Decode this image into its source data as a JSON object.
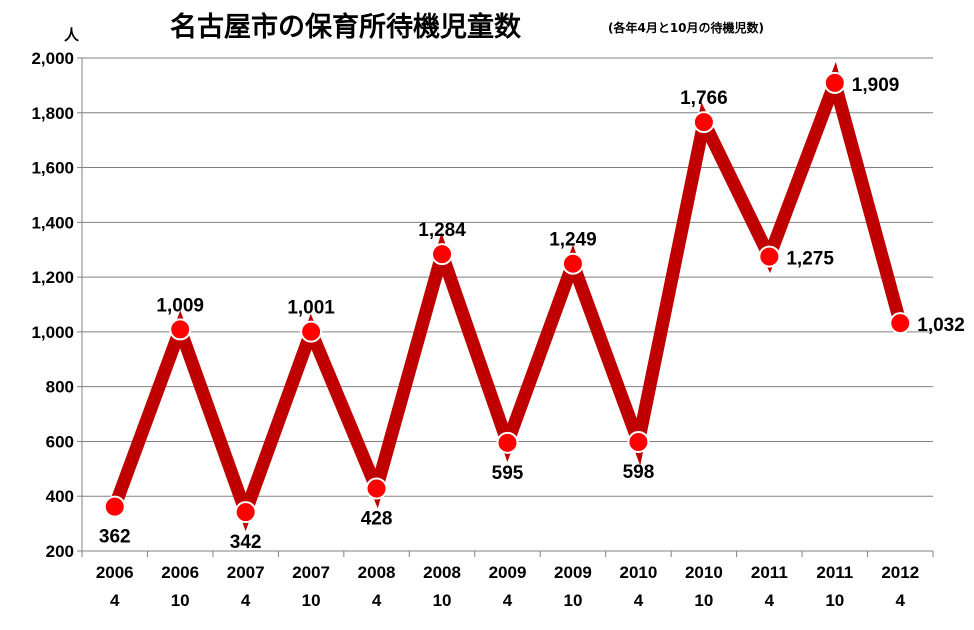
{
  "title": "名古屋市の保育所待機児童数",
  "subtitle": "(各年4月と10月の待機児数)",
  "chart_data": {
    "type": "line",
    "title": "名古屋市の保育所待機児童数",
    "subtitle": "(各年4月と10月の待機児数)",
    "ylabel": "人",
    "xlabel": "",
    "ylim": [
      200,
      2000
    ],
    "yticks": [
      "200",
      "400",
      "600",
      "800",
      "1,000",
      "1,200",
      "1,400",
      "1,600",
      "1,800",
      "2,000"
    ],
    "ytick_values": [
      200,
      400,
      600,
      800,
      1000,
      1200,
      1400,
      1600,
      1800,
      2000
    ],
    "categories": [
      {
        "year": "2006",
        "month": "4"
      },
      {
        "year": "2006",
        "month": "10"
      },
      {
        "year": "2007",
        "month": "4"
      },
      {
        "year": "2007",
        "month": "10"
      },
      {
        "year": "2008",
        "month": "4"
      },
      {
        "year": "2008",
        "month": "10"
      },
      {
        "year": "2009",
        "month": "4"
      },
      {
        "year": "2009",
        "month": "10"
      },
      {
        "year": "2010",
        "month": "4"
      },
      {
        "year": "2010",
        "month": "10"
      },
      {
        "year": "2011",
        "month": "4"
      },
      {
        "year": "2011",
        "month": "10"
      },
      {
        "year": "2012",
        "month": "4"
      }
    ],
    "values": [
      362,
      1009,
      342,
      1001,
      428,
      1284,
      595,
      1249,
      598,
      1766,
      1275,
      1909,
      1032
    ],
    "value_labels": [
      "362",
      "1,009",
      "342",
      "1,001",
      "428",
      "1,284",
      "595",
      "1,249",
      "598",
      "1,766",
      "1,275",
      "1,909",
      "1,032"
    ],
    "label_positions": [
      "below",
      "above",
      "below",
      "above",
      "below",
      "above",
      "below",
      "above",
      "below",
      "above",
      "right",
      "right",
      "right"
    ],
    "grid": true,
    "legend": "none",
    "colors": {
      "line": "#c00000",
      "marker_fill": "#ff0000",
      "marker_stroke": "#ffffff",
      "grid": "#808080",
      "axis": "#808080"
    }
  }
}
